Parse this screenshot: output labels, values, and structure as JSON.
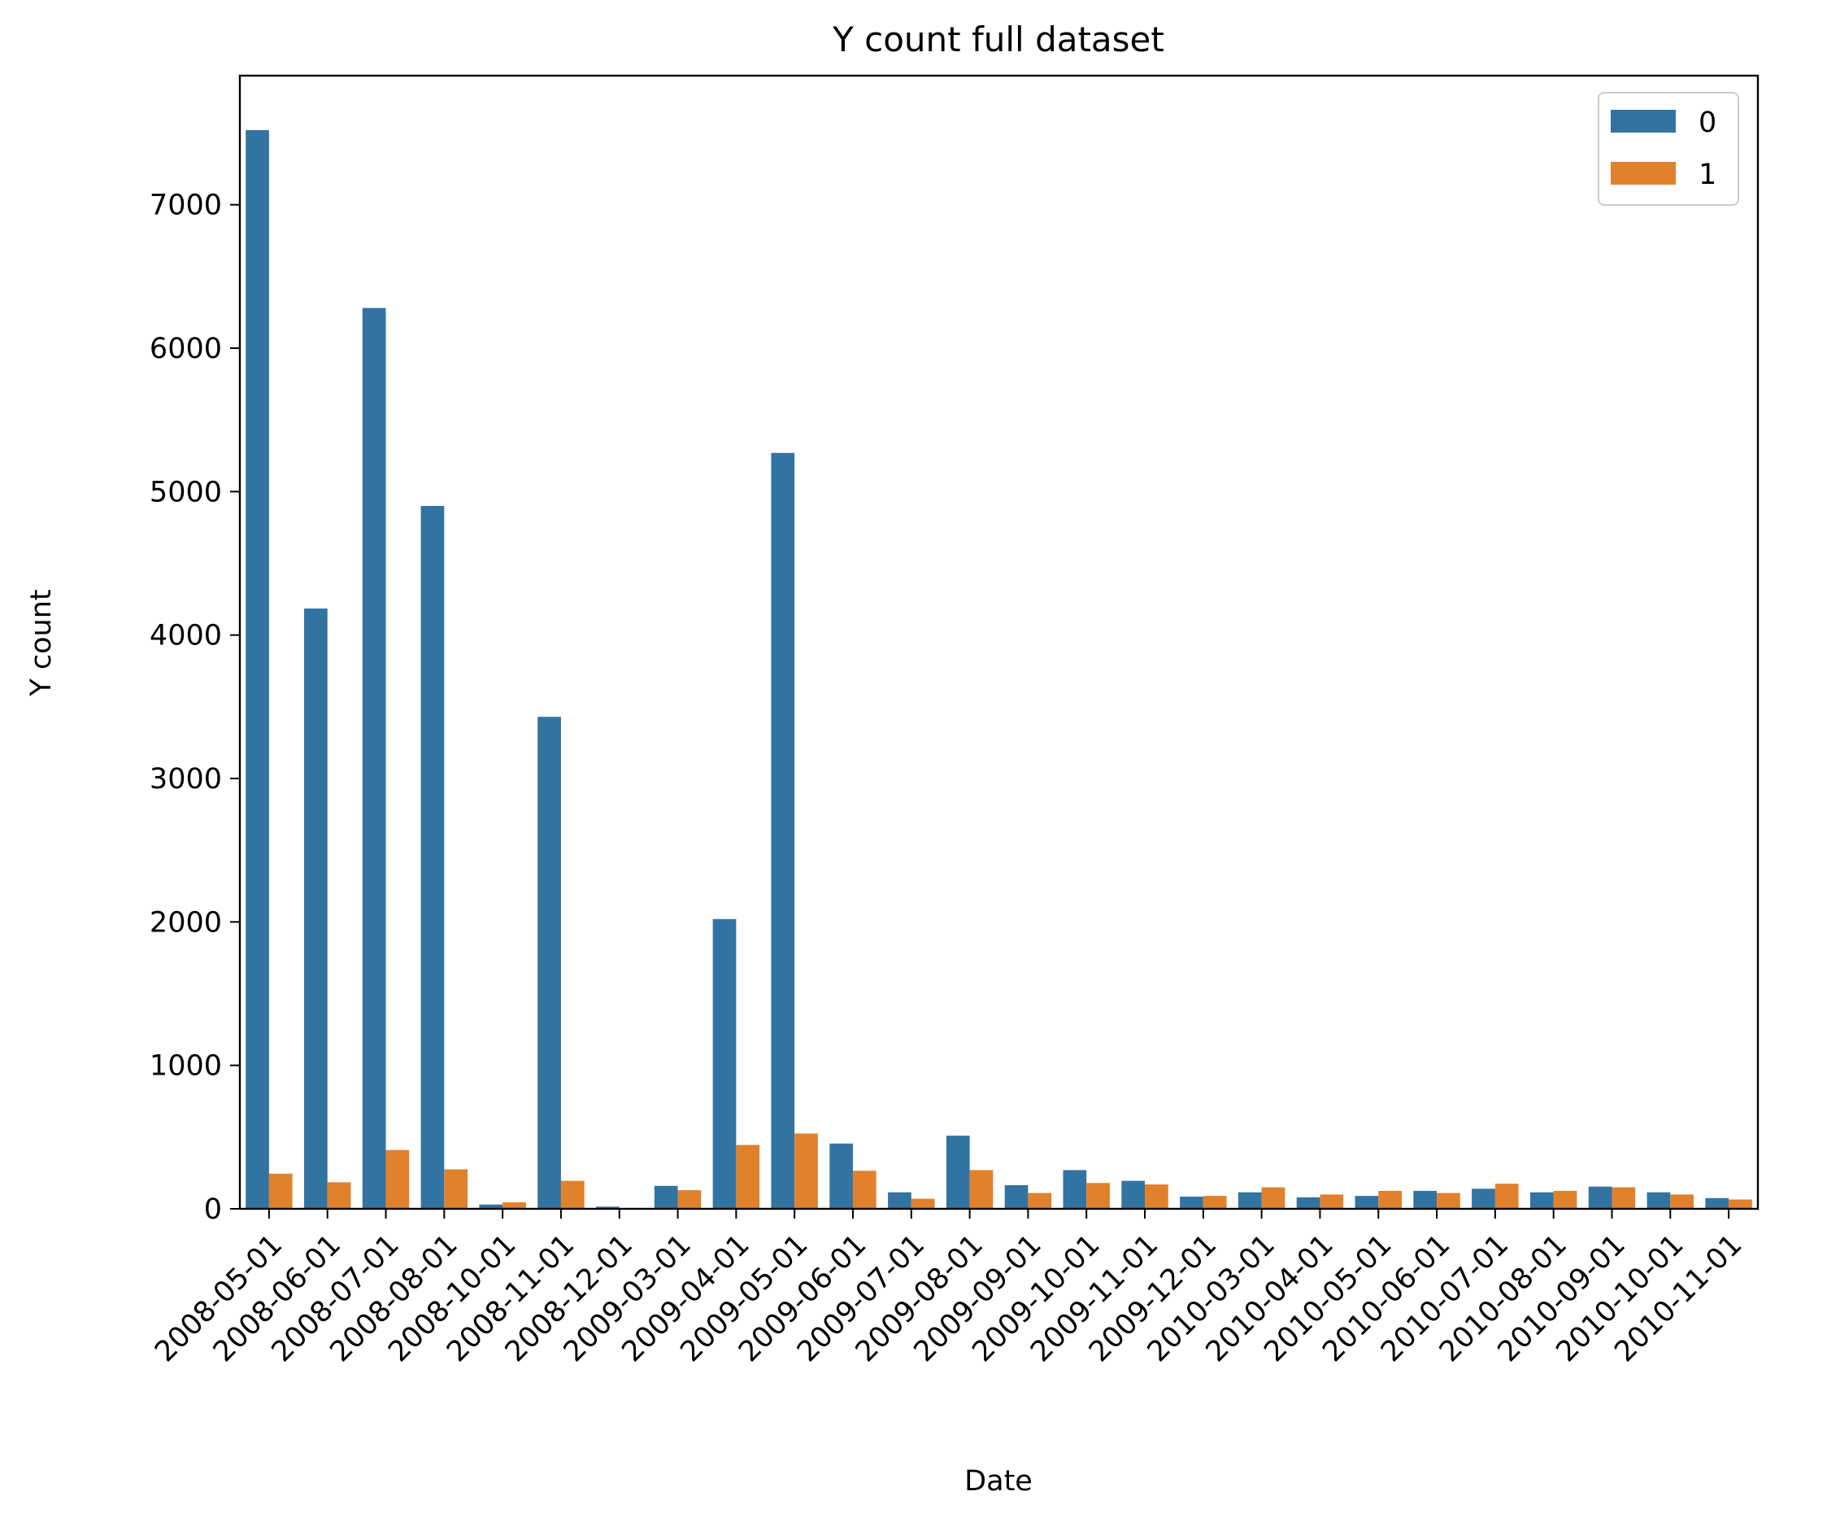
{
  "chart_data": {
    "type": "bar",
    "title": "Y count full dataset",
    "xlabel": "Date",
    "ylabel": "Y count",
    "ylim": [
      0,
      7900
    ],
    "yticks": [
      0,
      1000,
      2000,
      3000,
      4000,
      5000,
      6000,
      7000
    ],
    "ytick_labels": [
      "0",
      "1000",
      "2000",
      "3000",
      "4000",
      "5000",
      "6000",
      "7000"
    ],
    "categories": [
      "2008-05-01",
      "2008-06-01",
      "2008-07-01",
      "2008-08-01",
      "2008-10-01",
      "2008-11-01",
      "2008-12-01",
      "2009-03-01",
      "2009-04-01",
      "2009-05-01",
      "2009-06-01",
      "2009-07-01",
      "2009-08-01",
      "2009-09-01",
      "2009-10-01",
      "2009-11-01",
      "2009-12-01",
      "2010-03-01",
      "2010-04-01",
      "2010-05-01",
      "2010-06-01",
      "2010-07-01",
      "2010-08-01",
      "2010-09-01",
      "2010-10-01",
      "2010-11-01"
    ],
    "series": [
      {
        "name": "0",
        "color": "#3274a1",
        "values": [
          7520,
          4185,
          6280,
          4900,
          30,
          3430,
          15,
          160,
          2020,
          5270,
          455,
          115,
          510,
          165,
          270,
          195,
          85,
          115,
          80,
          90,
          125,
          140,
          115,
          155,
          115,
          75
        ]
      },
      {
        "name": "1",
        "color": "#e1812c",
        "values": [
          245,
          185,
          410,
          275,
          45,
          195,
          5,
          130,
          445,
          525,
          265,
          70,
          270,
          110,
          180,
          170,
          90,
          150,
          100,
          125,
          110,
          175,
          125,
          150,
          100,
          65
        ]
      }
    ],
    "legend": {
      "placement": "upper right",
      "entries": [
        "0",
        "1"
      ]
    },
    "grid": false
  }
}
